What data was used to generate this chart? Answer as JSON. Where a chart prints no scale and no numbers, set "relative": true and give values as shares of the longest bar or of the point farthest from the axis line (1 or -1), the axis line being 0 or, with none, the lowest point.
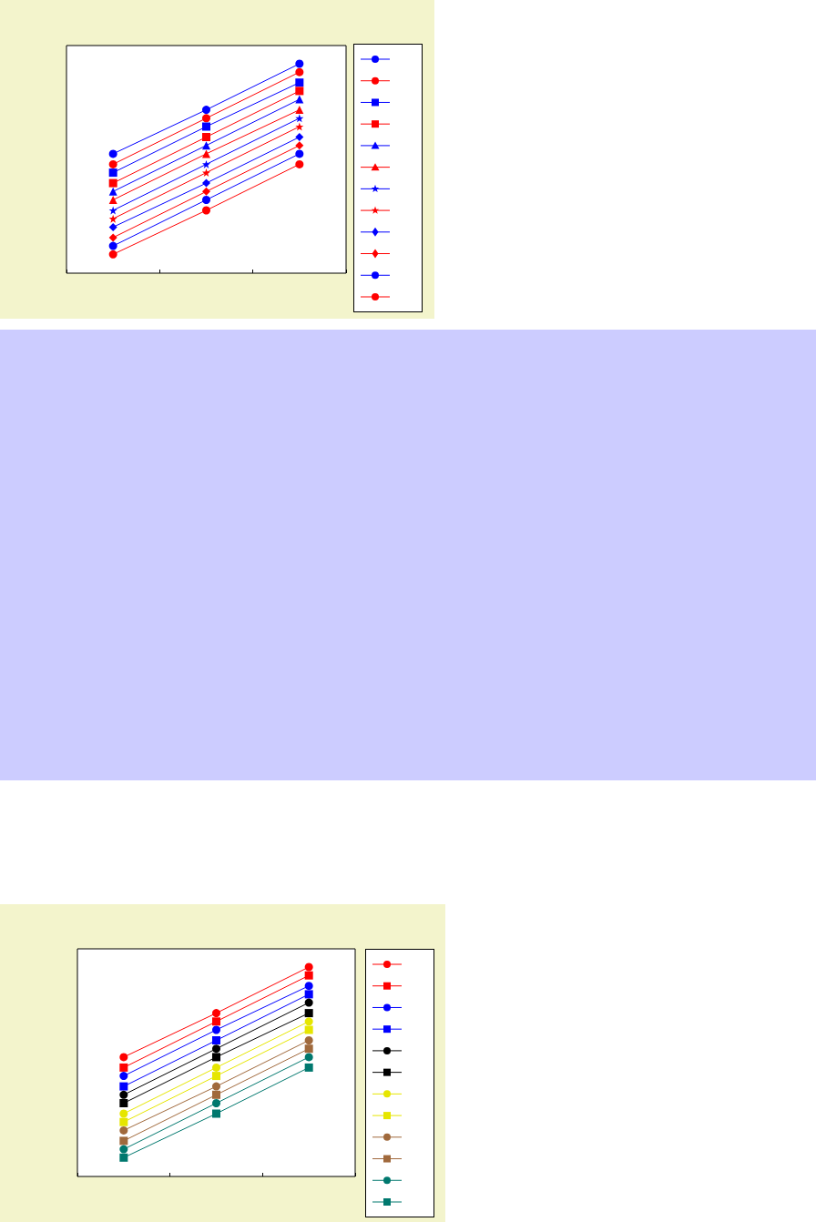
{
  "chart_data": [
    {
      "type": "line",
      "relative": true,
      "categories": [
        null,
        null,
        null
      ],
      "grid": false,
      "series": [
        {
          "color": "#0000ff",
          "marker": "circle",
          "values": [
            0.57,
            0.78,
            1
          ]
        },
        {
          "color": "#ff0000",
          "marker": "circle",
          "values": [
            0.52,
            0.74,
            0.96
          ]
        },
        {
          "color": "#0000ff",
          "marker": "square",
          "values": [
            0.48,
            0.7,
            0.91
          ]
        },
        {
          "color": "#ff0000",
          "marker": "square",
          "values": [
            0.43,
            0.65,
            0.87
          ]
        },
        {
          "color": "#0000ff",
          "marker": "triangle",
          "values": [
            0.39,
            0.61,
            0.83
          ]
        },
        {
          "color": "#ff0000",
          "marker": "triangle",
          "values": [
            0.35,
            0.57,
            0.78
          ]
        },
        {
          "color": "#0000ff",
          "marker": "star",
          "values": [
            0.3,
            0.52,
            0.74
          ]
        },
        {
          "color": "#ff0000",
          "marker": "star",
          "values": [
            0.26,
            0.48,
            0.7
          ]
        },
        {
          "color": "#0000ff",
          "marker": "diamond",
          "values": [
            0.22,
            0.43,
            0.65
          ]
        },
        {
          "color": "#ff0000",
          "marker": "diamond",
          "values": [
            0.17,
            0.39,
            0.61
          ]
        },
        {
          "color": "#0000ff",
          "marker": "circle",
          "values": [
            0.13,
            0.35,
            0.57
          ]
        },
        {
          "color": "#ff0000",
          "marker": "circle",
          "values": [
            0.09,
            0.3,
            0.52
          ]
        }
      ]
    },
    {
      "type": "line",
      "relative": true,
      "categories": [
        null,
        null,
        null
      ],
      "grid": false,
      "series": [
        {
          "color": "#ff0000",
          "marker": "circle",
          "values": [
            0.57,
            0.78,
            1
          ]
        },
        {
          "color": "#ff0000",
          "marker": "square",
          "values": [
            0.52,
            0.74,
            0.96
          ]
        },
        {
          "color": "#0000ff",
          "marker": "circle",
          "values": [
            0.48,
            0.7,
            0.91
          ]
        },
        {
          "color": "#0000ff",
          "marker": "square",
          "values": [
            0.43,
            0.65,
            0.87
          ]
        },
        {
          "color": "#000000",
          "marker": "circle",
          "values": [
            0.39,
            0.61,
            0.83
          ]
        },
        {
          "color": "#000000",
          "marker": "square",
          "values": [
            0.35,
            0.57,
            0.78
          ]
        },
        {
          "color": "#e6e600",
          "marker": "circle",
          "values": [
            0.3,
            0.52,
            0.74
          ]
        },
        {
          "color": "#e6e600",
          "marker": "square",
          "values": [
            0.26,
            0.48,
            0.7
          ]
        },
        {
          "color": "#a0693c",
          "marker": "circle",
          "values": [
            0.22,
            0.43,
            0.65
          ]
        },
        {
          "color": "#a0693c",
          "marker": "square",
          "values": [
            0.17,
            0.39,
            0.61
          ]
        },
        {
          "color": "#00786e",
          "marker": "circle",
          "values": [
            0.13,
            0.35,
            0.57
          ]
        },
        {
          "color": "#00786e",
          "marker": "square",
          "values": [
            0.09,
            0.3,
            0.52
          ]
        }
      ]
    }
  ]
}
